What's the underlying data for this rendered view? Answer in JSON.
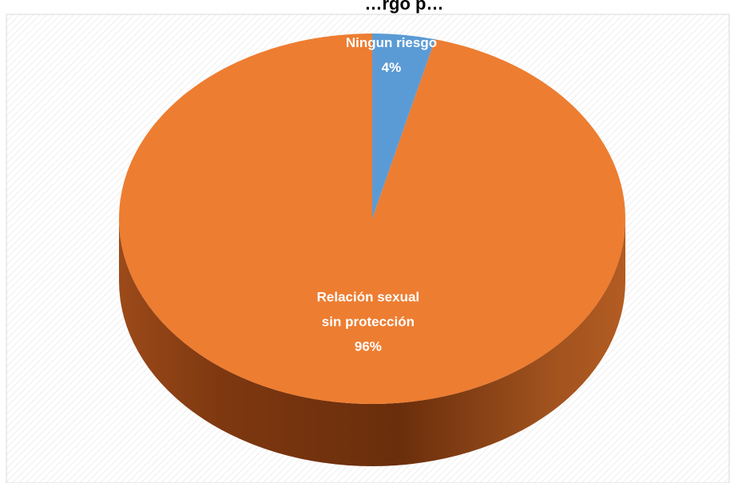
{
  "chart_data": {
    "type": "pie",
    "title_partial": "…rgo p…",
    "slices": [
      {
        "label_line1": "Ningun riesgo",
        "label_line2": "",
        "percent_label": "4%",
        "value": 4,
        "color": "#5b9bd5"
      },
      {
        "label_line1": "Relación sexual",
        "label_line2": "sin protección",
        "percent_label": "96%",
        "value": 96,
        "color": "#ed7d31"
      }
    ],
    "style": "3d",
    "legend": "none",
    "data_labels": "inside"
  },
  "colors": {
    "side_dark": "#8a3f14",
    "side_mid": "#a14b18",
    "frame_border": "#d9d9d9"
  }
}
